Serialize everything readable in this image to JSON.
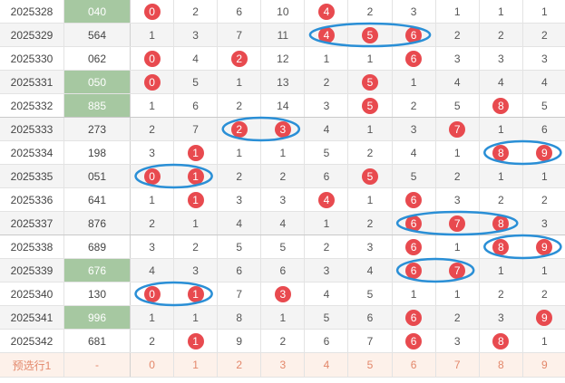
{
  "rows": [
    {
      "period": "2025328",
      "draw": "040",
      "hl": true,
      "cells": [
        "0",
        "2",
        "6",
        "10",
        "4",
        "2",
        "3",
        "1",
        "1",
        "1"
      ],
      "balls": [
        0,
        4
      ]
    },
    {
      "period": "2025329",
      "draw": "564",
      "hl": false,
      "cells": [
        "1",
        "3",
        "7",
        "11",
        "4",
        "5",
        "6",
        "2",
        "2",
        "2"
      ],
      "balls": [
        4,
        5,
        6
      ]
    },
    {
      "period": "2025330",
      "draw": "062",
      "hl": false,
      "cells": [
        "0",
        "4",
        "2",
        "12",
        "1",
        "1",
        "6",
        "3",
        "3",
        "3"
      ],
      "balls": [
        0,
        2,
        6
      ]
    },
    {
      "period": "2025331",
      "draw": "050",
      "hl": true,
      "cells": [
        "0",
        "5",
        "1",
        "13",
        "2",
        "5",
        "1",
        "4",
        "4",
        "4"
      ],
      "balls": [
        0,
        5
      ]
    },
    {
      "period": "2025332",
      "draw": "885",
      "hl": true,
      "cells": [
        "1",
        "6",
        "2",
        "14",
        "3",
        "5",
        "2",
        "5",
        "8",
        "5"
      ],
      "balls": [
        5,
        8
      ]
    },
    {
      "period": "2025333",
      "draw": "273",
      "hl": false,
      "cells": [
        "2",
        "7",
        "2",
        "3",
        "4",
        "1",
        "3",
        "7",
        "1",
        "6"
      ],
      "balls": [
        2,
        3,
        7
      ]
    },
    {
      "period": "2025334",
      "draw": "198",
      "hl": false,
      "cells": [
        "3",
        "1",
        "1",
        "1",
        "5",
        "2",
        "4",
        "1",
        "8",
        "9"
      ],
      "balls": [
        1,
        8,
        9
      ]
    },
    {
      "period": "2025335",
      "draw": "051",
      "hl": false,
      "cells": [
        "0",
        "1",
        "2",
        "2",
        "6",
        "5",
        "5",
        "2",
        "1",
        "1"
      ],
      "balls": [
        0,
        1,
        5
      ]
    },
    {
      "period": "2025336",
      "draw": "641",
      "hl": false,
      "cells": [
        "1",
        "1",
        "3",
        "3",
        "4",
        "1",
        "6",
        "3",
        "2",
        "2"
      ],
      "balls": [
        1,
        4,
        6
      ]
    },
    {
      "period": "2025337",
      "draw": "876",
      "hl": false,
      "cells": [
        "2",
        "1",
        "4",
        "4",
        "1",
        "2",
        "6",
        "7",
        "8",
        "3"
      ],
      "balls": [
        6,
        7,
        8
      ]
    },
    {
      "period": "2025338",
      "draw": "689",
      "hl": false,
      "cells": [
        "3",
        "2",
        "5",
        "5",
        "2",
        "3",
        "6",
        "1",
        "8",
        "9"
      ],
      "balls": [
        6,
        8,
        9
      ]
    },
    {
      "period": "2025339",
      "draw": "676",
      "hl": true,
      "cells": [
        "4",
        "3",
        "6",
        "6",
        "3",
        "4",
        "6",
        "7",
        "1",
        "1"
      ],
      "balls": [
        6,
        7
      ]
    },
    {
      "period": "2025340",
      "draw": "130",
      "hl": false,
      "cells": [
        "0",
        "1",
        "7",
        "3",
        "4",
        "5",
        "1",
        "1",
        "2",
        "2"
      ],
      "balls": [
        0,
        1,
        3
      ]
    },
    {
      "period": "2025341",
      "draw": "996",
      "hl": true,
      "cells": [
        "1",
        "1",
        "8",
        "1",
        "5",
        "6",
        "6",
        "2",
        "3",
        "9"
      ],
      "balls": [
        6,
        9
      ]
    },
    {
      "period": "2025342",
      "draw": "681",
      "hl": false,
      "cells": [
        "2",
        "1",
        "9",
        "2",
        "6",
        "7",
        "6",
        "3",
        "8",
        "1"
      ],
      "balls": [
        1,
        6,
        8
      ]
    }
  ],
  "footer": {
    "label": "预选行1",
    "draw": "-",
    "cells": [
      "0",
      "1",
      "2",
      "3",
      "4",
      "5",
      "6",
      "7",
      "8",
      "9"
    ]
  },
  "colors": {
    "ball": "#e84a4f",
    "highlight": "#a6c8a1",
    "ring": "#2a8fd6",
    "footer_text": "#e3876a"
  },
  "rings": [
    {
      "row": 1,
      "from": 4,
      "to": 6
    },
    {
      "row": 5,
      "from": 2,
      "to": 3
    },
    {
      "row": 6,
      "from": 8,
      "to": 9
    },
    {
      "row": 7,
      "from": 0,
      "to": 1
    },
    {
      "row": 9,
      "from": 6,
      "to": 8
    },
    {
      "row": 10,
      "from": 8,
      "to": 9
    },
    {
      "row": 11,
      "from": 6,
      "to": 7
    },
    {
      "row": 12,
      "from": 0,
      "to": 1
    }
  ]
}
